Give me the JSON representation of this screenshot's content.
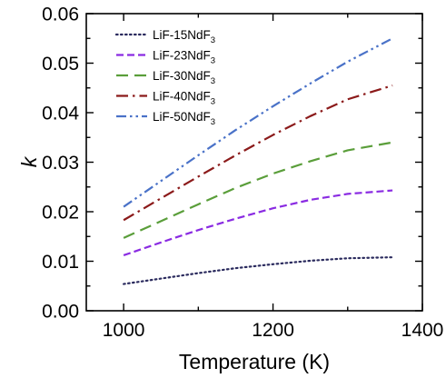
{
  "chart_data": {
    "type": "line",
    "title": "",
    "xlabel": "Temperature (K)",
    "ylabel": "k",
    "xlim": [
      950,
      1400
    ],
    "ylim": [
      0,
      0.06
    ],
    "xticks": [
      1000,
      1200,
      1400
    ],
    "xtick_labels": [
      "1000",
      "1200",
      "1400"
    ],
    "yticks": [
      0,
      0.01,
      0.02,
      0.03,
      0.04,
      0.05,
      0.06
    ],
    "ytick_labels": [
      "0.00",
      "0.01",
      "0.02",
      "0.03",
      "0.04",
      "0.05",
      "0.06"
    ],
    "grid": false,
    "legend_position": "top-left",
    "x": [
      1000,
      1050,
      1100,
      1150,
      1200,
      1250,
      1300,
      1360
    ],
    "series": [
      {
        "name": "LiF-15NdF3",
        "label_main": "LiF-15NdF",
        "label_sub": "3",
        "color": "#2b2b5e",
        "dash": "dot",
        "values": [
          0.0054,
          0.0065,
          0.0076,
          0.0086,
          0.0094,
          0.0101,
          0.0106,
          0.0108
        ]
      },
      {
        "name": "LiF-23NdF3",
        "label_main": "LiF-23NdF",
        "label_sub": "3",
        "color": "#8a2be2",
        "dash": "short-dash",
        "values": [
          0.0112,
          0.0138,
          0.0163,
          0.0186,
          0.0207,
          0.0224,
          0.0236,
          0.0243
        ]
      },
      {
        "name": "LiF-30NdF3",
        "label_main": "LiF-30NdF",
        "label_sub": "3",
        "color": "#5a9e3a",
        "dash": "long-dash",
        "values": [
          0.0147,
          0.0181,
          0.0215,
          0.0248,
          0.0277,
          0.0302,
          0.0324,
          0.034
        ]
      },
      {
        "name": "LiF-40NdF3",
        "label_main": "LiF-40NdF",
        "label_sub": "3",
        "color": "#8b1a1a",
        "dash": "dash-dot",
        "values": [
          0.0183,
          0.0227,
          0.0271,
          0.0314,
          0.0355,
          0.0393,
          0.0427,
          0.0455
        ]
      },
      {
        "name": "LiF-50NdF3",
        "label_main": "LiF-50NdF",
        "label_sub": "3",
        "color": "#4a72c8",
        "dash": "dash-dot-dot",
        "values": [
          0.021,
          0.0262,
          0.0314,
          0.0365,
          0.0413,
          0.0459,
          0.0503,
          0.055
        ]
      }
    ]
  }
}
